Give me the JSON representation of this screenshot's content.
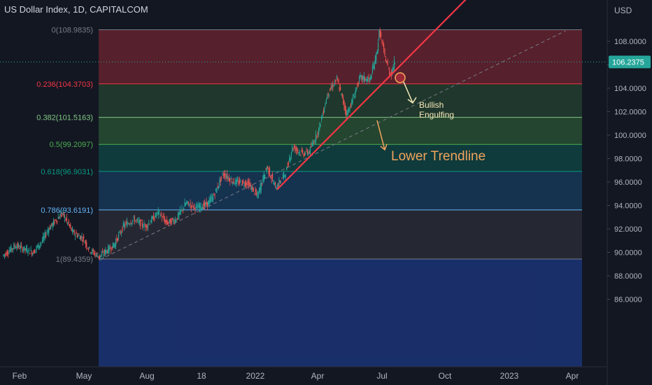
{
  "header": {
    "title": "US Dollar Index, 1D, CAPITALCOM"
  },
  "price_axis": {
    "currency": "USD",
    "ticks": [
      "108.0000",
      "106.0000",
      "104.0000",
      "102.0000",
      "100.0000",
      "98.0000",
      "96.0000",
      "94.0000",
      "92.0000",
      "90.0000",
      "88.0000",
      "86.0000"
    ],
    "current_price": "106.2375"
  },
  "time_axis": {
    "ticks": [
      "Feb",
      "May",
      "Aug",
      "18",
      "2022",
      "Apr",
      "Jul",
      "Oct",
      "2023",
      "Apr"
    ]
  },
  "fib_levels": [
    {
      "label": "0(108.9835)",
      "value": 108.9835,
      "color": "#787b86"
    },
    {
      "label": "0.236(104.3703)",
      "value": 104.3703,
      "color": "#f23645"
    },
    {
      "label": "0.382(101.5163)",
      "value": 101.5163,
      "color": "#81c784"
    },
    {
      "label": "0.5(99.2097)",
      "value": 99.2097,
      "color": "#4caf50"
    },
    {
      "label": "0.618(96.9031)",
      "value": 96.9031,
      "color": "#089981"
    },
    {
      "label": "0.786(93.6191)",
      "value": 93.6191,
      "color": "#64b5f6"
    },
    {
      "label": "1(89.4359)",
      "value": 89.4359,
      "color": "#787b86"
    }
  ],
  "annotations": {
    "bullish": "Bullish\nEngulfing",
    "trendline": "Lower Trendline"
  },
  "colors": {
    "up": "#26a69a",
    "down": "#ef5350",
    "trend": "#f23645",
    "annotation": "#f0a35c",
    "bullish": "#f5e9b8"
  },
  "chart_data": {
    "type": "candlestick",
    "title": "US Dollar Index, 1D, CAPITALCOM",
    "ylim": [
      85.5,
      111
    ],
    "price_path": [
      [
        "2021-01-01",
        89.7
      ],
      [
        "2021-01-20",
        90.6
      ],
      [
        "2021-02-01",
        90.3
      ],
      [
        "2021-02-15",
        90.0
      ],
      [
        "2021-03-01",
        91.0
      ],
      [
        "2021-03-10",
        92.0
      ],
      [
        "2021-03-25",
        93.0
      ],
      [
        "2021-03-31",
        93.3
      ],
      [
        "2021-04-15",
        91.7
      ],
      [
        "2021-04-30",
        91.2
      ],
      [
        "2021-05-10",
        90.2
      ],
      [
        "2021-05-25",
        89.6
      ],
      [
        "2021-06-01",
        90.0
      ],
      [
        "2021-06-15",
        90.6
      ],
      [
        "2021-06-30",
        92.3
      ],
      [
        "2021-07-15",
        92.8
      ],
      [
        "2021-08-01",
        92.2
      ],
      [
        "2021-08-20",
        93.4
      ],
      [
        "2021-09-01",
        92.5
      ],
      [
        "2021-09-15",
        92.8
      ],
      [
        "2021-09-30",
        94.2
      ],
      [
        "2021-10-15",
        93.8
      ],
      [
        "2021-10-31",
        94.1
      ],
      [
        "2021-11-10",
        94.8
      ],
      [
        "2021-11-24",
        96.7
      ],
      [
        "2021-12-10",
        96.0
      ],
      [
        "2021-12-31",
        95.9
      ],
      [
        "2022-01-14",
        94.8
      ],
      [
        "2022-01-28",
        97.3
      ],
      [
        "2022-02-10",
        95.5
      ],
      [
        "2022-02-25",
        96.8
      ],
      [
        "2022-03-07",
        99.0
      ],
      [
        "2022-03-22",
        98.4
      ],
      [
        "2022-04-01",
        98.6
      ],
      [
        "2022-04-15",
        100.5
      ],
      [
        "2022-04-28",
        103.5
      ],
      [
        "2022-05-12",
        104.8
      ],
      [
        "2022-05-26",
        101.8
      ],
      [
        "2022-06-01",
        102.5
      ],
      [
        "2022-06-15",
        104.9
      ],
      [
        "2022-06-30",
        104.7
      ],
      [
        "2022-07-10",
        107.0
      ],
      [
        "2022-07-14",
        108.9
      ],
      [
        "2022-07-22",
        106.7
      ],
      [
        "2022-07-29",
        105.3
      ],
      [
        "2022-08-01",
        105.3
      ],
      [
        "2022-08-05",
        106.2
      ]
    ],
    "trendline": [
      [
        "2022-02-15",
        95.6
      ],
      [
        "2022-08-05",
        105.5
      ]
    ],
    "support_line": [
      [
        "2021-05-25",
        89.4
      ],
      [
        "2023-04-15",
        108.9
      ]
    ]
  }
}
